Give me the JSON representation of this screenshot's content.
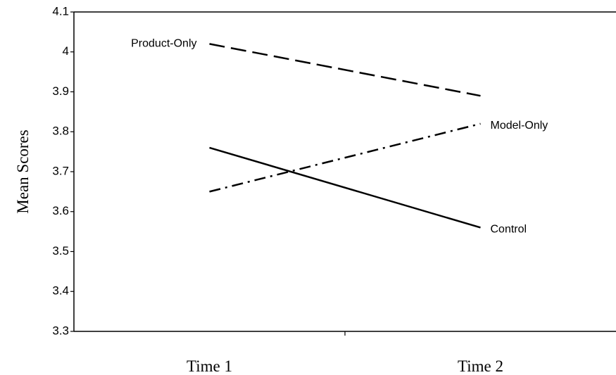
{
  "chart_data": {
    "type": "line",
    "y_label": "Mean Scores",
    "categories": [
      "Time 1",
      "Time 2"
    ],
    "series": [
      {
        "name": "Product-Only",
        "color": "#000000",
        "linestyle": "dashed",
        "values": [
          4.02,
          3.89
        ]
      },
      {
        "name": "Model-Only",
        "color": "#000000",
        "linestyle": "dashdot",
        "values": [
          3.65,
          3.82
        ]
      },
      {
        "name": "Control",
        "color": "#000000",
        "linestyle": "solid",
        "values": [
          3.76,
          3.56
        ]
      }
    ],
    "ylim": [
      3.3,
      4.1
    ],
    "yticks": [
      3.3,
      3.4,
      3.5,
      3.6,
      3.7,
      3.8,
      3.9,
      4,
      4.1
    ],
    "grid": false
  }
}
